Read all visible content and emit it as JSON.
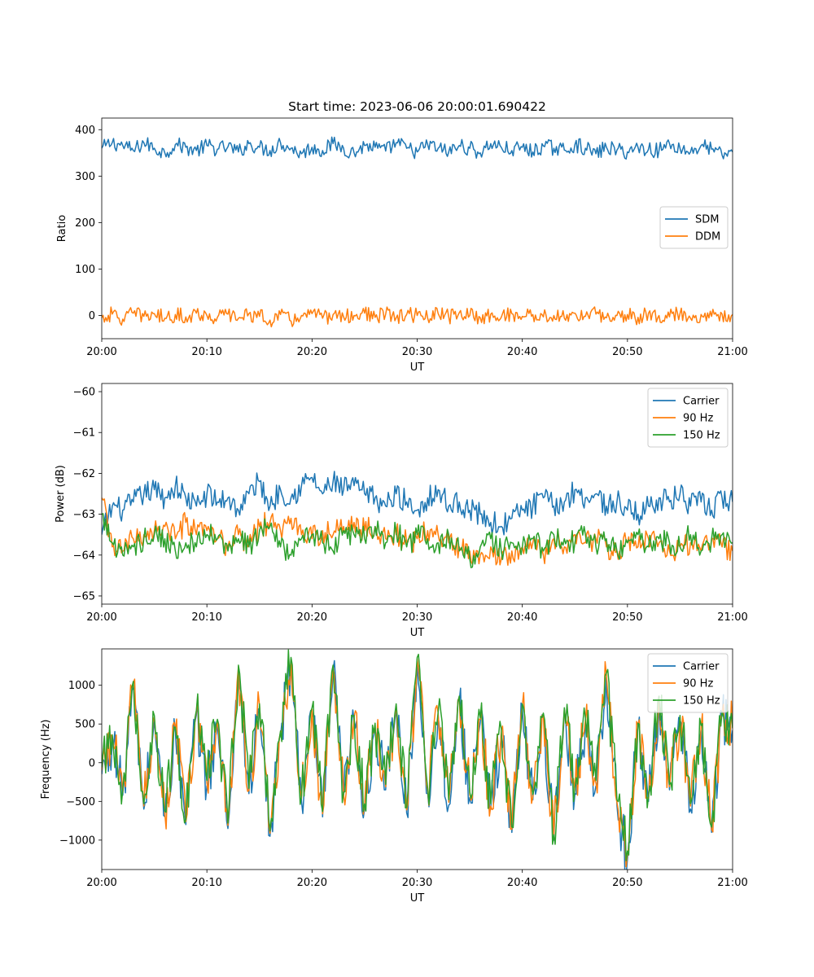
{
  "chart_data": [
    {
      "type": "line",
      "title": "Start time: 2023-06-06 20:00:01.690422",
      "xlabel": "UT",
      "ylabel": "Ratio",
      "xlim": [
        0,
        60
      ],
      "ylim": [
        -50,
        425
      ],
      "x_tick_values": [
        0,
        10,
        20,
        30,
        40,
        50,
        60
      ],
      "x_tick_labels": [
        "20:00",
        "20:10",
        "20:20",
        "20:30",
        "20:40",
        "20:50",
        "21:00"
      ],
      "y_tick_values": [
        0,
        100,
        200,
        300,
        400
      ],
      "y_tick_labels": [
        "0",
        "100",
        "200",
        "300",
        "400"
      ],
      "grid": false,
      "legend": "center-right",
      "x": [
        0,
        1,
        2,
        3,
        4,
        5,
        6,
        7,
        8,
        9,
        10,
        11,
        12,
        13,
        14,
        15,
        16,
        17,
        18,
        19,
        20,
        21,
        22,
        23,
        24,
        25,
        26,
        27,
        28,
        29,
        30,
        31,
        32,
        33,
        34,
        35,
        36,
        37,
        38,
        39,
        40,
        41,
        42,
        43,
        44,
        45,
        46,
        47,
        48,
        49,
        50,
        51,
        52,
        53,
        54,
        55,
        56,
        57,
        58,
        59,
        60
      ],
      "series": [
        {
          "name": "SDM",
          "color": "#1f77b4",
          "values": [
            360,
            372,
            366,
            355,
            372,
            360,
            350,
            368,
            362,
            355,
            366,
            358,
            363,
            352,
            370,
            362,
            355,
            372,
            360,
            348,
            362,
            355,
            370,
            360,
            350,
            366,
            362,
            354,
            372,
            360,
            352,
            368,
            360,
            352,
            366,
            360,
            350,
            370,
            362,
            355,
            362,
            352,
            365,
            360,
            356,
            368,
            360,
            348,
            362,
            356,
            352,
            362,
            358,
            355,
            370,
            360,
            352,
            366,
            358,
            345,
            352
          ]
        },
        {
          "name": "DDM",
          "color": "#ff7f0e",
          "values": [
            -5,
            3,
            -8,
            5,
            -2,
            4,
            -6,
            2,
            -3,
            5,
            0,
            -4,
            3,
            -6,
            4,
            -2,
            -10,
            2,
            -12,
            0,
            4,
            -6,
            2,
            -3,
            0,
            5,
            -4,
            3,
            -5,
            2,
            0,
            -6,
            4,
            -3,
            6,
            0,
            -5,
            3,
            -4,
            4,
            -2,
            2,
            -3,
            0,
            -6,
            5,
            -2,
            3,
            -5,
            0,
            2,
            -4,
            5,
            0,
            -3,
            4,
            -6,
            2,
            -2,
            3,
            2
          ]
        }
      ]
    },
    {
      "type": "line",
      "xlabel": "UT",
      "ylabel": "Power (dB)",
      "xlim": [
        0,
        60
      ],
      "ylim": [
        -65.2,
        -59.8
      ],
      "x_tick_values": [
        0,
        10,
        20,
        30,
        40,
        50,
        60
      ],
      "x_tick_labels": [
        "20:00",
        "20:10",
        "20:20",
        "20:30",
        "20:40",
        "20:50",
        "21:00"
      ],
      "y_tick_values": [
        -65,
        -64,
        -63,
        -62,
        -61,
        -60
      ],
      "y_tick_labels": [
        "−65",
        "−64",
        "−63",
        "−62",
        "−61",
        "−60"
      ],
      "grid": false,
      "legend": "top-right",
      "x": [
        0,
        1,
        2,
        3,
        4,
        5,
        6,
        7,
        8,
        9,
        10,
        11,
        12,
        13,
        14,
        15,
        16,
        17,
        18,
        19,
        20,
        21,
        22,
        23,
        24,
        25,
        26,
        27,
        28,
        29,
        30,
        31,
        32,
        33,
        34,
        35,
        36,
        37,
        38,
        39,
        40,
        41,
        42,
        43,
        44,
        45,
        46,
        47,
        48,
        49,
        50,
        51,
        52,
        53,
        54,
        55,
        56,
        57,
        58,
        59,
        60
      ],
      "series": [
        {
          "name": "Carrier",
          "color": "#1f77b4",
          "values": [
            -63.5,
            -62.8,
            -62.9,
            -62.7,
            -62.5,
            -62.4,
            -62.6,
            -62.3,
            -62.6,
            -62.8,
            -62.5,
            -62.7,
            -62.6,
            -62.9,
            -62.5,
            -62.2,
            -62.8,
            -62.4,
            -62.6,
            -62.3,
            -62.1,
            -62.5,
            -62.2,
            -62.4,
            -62.3,
            -62.5,
            -62.6,
            -62.8,
            -62.5,
            -62.7,
            -62.9,
            -62.6,
            -62.4,
            -62.8,
            -62.7,
            -62.9,
            -63.0,
            -63.2,
            -63.3,
            -63.1,
            -62.9,
            -62.8,
            -62.6,
            -62.8,
            -62.7,
            -62.4,
            -62.6,
            -62.5,
            -62.8,
            -62.7,
            -62.9,
            -63.0,
            -62.8,
            -62.6,
            -62.7,
            -62.5,
            -62.8,
            -62.7,
            -62.9,
            -62.6,
            -62.7
          ]
        },
        {
          "name": "90 Hz",
          "color": "#ff7f0e",
          "values": [
            -62.6,
            -63.8,
            -63.9,
            -63.6,
            -63.5,
            -63.4,
            -63.3,
            -63.6,
            -63.2,
            -63.5,
            -63.4,
            -63.6,
            -63.8,
            -63.5,
            -63.7,
            -63.3,
            -63.2,
            -63.4,
            -63.1,
            -63.5,
            -63.6,
            -63.4,
            -63.5,
            -63.3,
            -63.2,
            -63.4,
            -63.3,
            -63.6,
            -63.5,
            -63.7,
            -63.6,
            -63.4,
            -63.5,
            -63.7,
            -63.8,
            -63.9,
            -64.0,
            -63.8,
            -64.1,
            -63.9,
            -63.8,
            -63.7,
            -64.0,
            -63.6,
            -63.8,
            -63.5,
            -63.7,
            -63.6,
            -63.8,
            -63.9,
            -63.7,
            -63.8,
            -63.6,
            -63.7,
            -63.9,
            -63.8,
            -63.7,
            -63.9,
            -63.6,
            -63.8,
            -63.9
          ]
        },
        {
          "name": "150 Hz",
          "color": "#2ca02c",
          "values": [
            -63.0,
            -63.7,
            -64.0,
            -63.8,
            -63.6,
            -63.5,
            -63.6,
            -63.9,
            -63.7,
            -63.8,
            -63.5,
            -63.6,
            -63.9,
            -63.6,
            -63.8,
            -63.4,
            -63.3,
            -63.8,
            -64.0,
            -63.6,
            -63.5,
            -63.7,
            -63.9,
            -63.4,
            -63.5,
            -63.6,
            -63.3,
            -63.7,
            -63.4,
            -63.8,
            -63.5,
            -63.6,
            -63.7,
            -63.5,
            -63.9,
            -64.1,
            -63.8,
            -63.6,
            -63.9,
            -63.7,
            -63.8,
            -63.6,
            -63.9,
            -63.5,
            -63.6,
            -63.7,
            -63.5,
            -63.8,
            -63.6,
            -63.9,
            -63.7,
            -63.5,
            -63.8,
            -63.6,
            -63.7,
            -63.8,
            -63.5,
            -63.9,
            -63.6,
            -63.5,
            -63.7
          ]
        }
      ]
    },
    {
      "type": "line",
      "xlabel": "UT",
      "ylabel": "Frequency (Hz)",
      "xlim": [
        0,
        60
      ],
      "ylim": [
        -1380,
        1470
      ],
      "x_tick_values": [
        0,
        10,
        20,
        30,
        40,
        50,
        60
      ],
      "x_tick_labels": [
        "20:00",
        "20:10",
        "20:20",
        "20:30",
        "20:40",
        "20:50",
        "21:00"
      ],
      "y_tick_values": [
        -1000,
        -500,
        0,
        500,
        1000
      ],
      "y_tick_labels": [
        "−1000",
        "−500",
        "0",
        "500",
        "1000"
      ],
      "grid": false,
      "legend": "top-right",
      "x": [
        0,
        1,
        2,
        3,
        4,
        5,
        6,
        7,
        8,
        9,
        10,
        11,
        12,
        13,
        14,
        15,
        16,
        17,
        18,
        19,
        20,
        21,
        22,
        23,
        24,
        25,
        26,
        27,
        28,
        29,
        30,
        31,
        32,
        33,
        34,
        35,
        36,
        37,
        38,
        39,
        40,
        41,
        42,
        43,
        44,
        45,
        46,
        47,
        48,
        49,
        50,
        51,
        52,
        53,
        54,
        55,
        56,
        57,
        58,
        59,
        60
      ],
      "series": [
        {
          "name": "Carrier",
          "color": "#1f77b4",
          "values": [
            -150,
            300,
            -420,
            980,
            -600,
            550,
            -700,
            400,
            -800,
            620,
            -300,
            500,
            -850,
            1200,
            -400,
            700,
            -950,
            350,
            1300,
            -500,
            650,
            -700,
            1200,
            -450,
            550,
            -600,
            450,
            -350,
            700,
            -650,
            1300,
            -400,
            600,
            -550,
            800,
            -450,
            520,
            -600,
            380,
            -900,
            700,
            -480,
            580,
            -1000,
            650,
            -400,
            520,
            -300,
            1100,
            -550,
            -1250,
            450,
            -500,
            800,
            -350,
            550,
            -600,
            420,
            -900,
            600,
            420
          ]
        },
        {
          "name": "90 Hz",
          "color": "#ff7f0e",
          "values": [
            -100,
            340,
            -380,
            1020,
            -560,
            590,
            -660,
            440,
            -760,
            660,
            -260,
            540,
            -810,
            1240,
            -360,
            740,
            -910,
            390,
            1340,
            -460,
            690,
            -660,
            1240,
            -410,
            590,
            -560,
            490,
            -310,
            740,
            -610,
            1340,
            -360,
            640,
            -510,
            840,
            -410,
            560,
            -560,
            420,
            -860,
            740,
            -440,
            620,
            -960,
            690,
            -360,
            560,
            -260,
            1140,
            -510,
            -1180,
            490,
            -460,
            840,
            -310,
            590,
            -560,
            460,
            -860,
            640,
            440
          ]
        },
        {
          "name": "150 Hz",
          "color": "#2ca02c",
          "values": [
            -60,
            360,
            -350,
            1050,
            -530,
            610,
            -630,
            460,
            -730,
            680,
            -230,
            560,
            -780,
            1260,
            -330,
            760,
            -880,
            410,
            1360,
            -430,
            710,
            -630,
            1260,
            -380,
            610,
            -530,
            510,
            -280,
            760,
            -580,
            1360,
            -330,
            660,
            -480,
            860,
            -380,
            580,
            -530,
            440,
            -830,
            760,
            -410,
            640,
            -930,
            710,
            -330,
            580,
            -230,
            1160,
            -480,
            -1140,
            510,
            -430,
            860,
            -280,
            610,
            -530,
            480,
            -830,
            660,
            450
          ]
        }
      ]
    }
  ]
}
